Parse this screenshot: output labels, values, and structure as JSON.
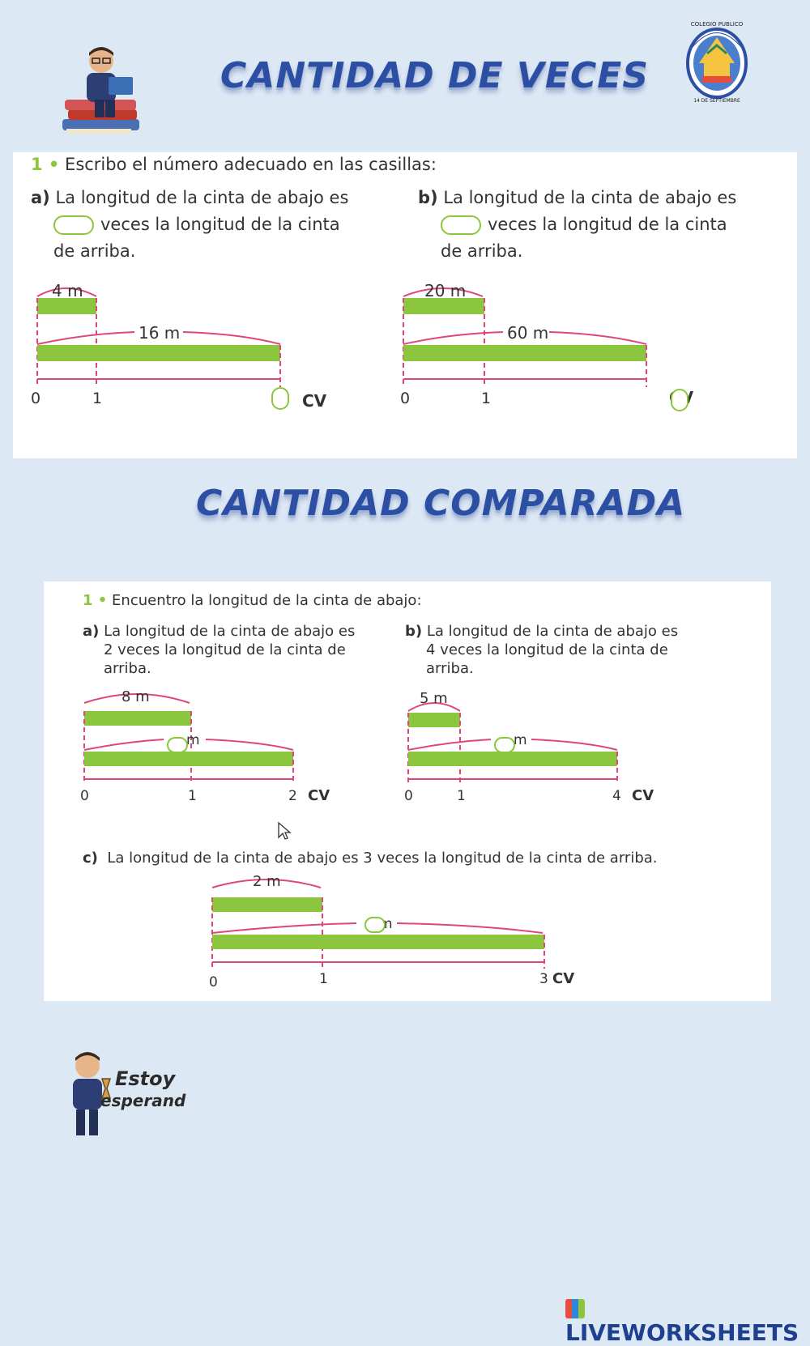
{
  "header": {
    "title1": "CANTIDAD DE VECES",
    "title2": "CANTIDAD COMPARADA",
    "school_top": "COLEGIO PUBLICO",
    "school_bottom": "14 DE SEPTIEMBRE"
  },
  "section1": {
    "instruction_num": "1",
    "instruction": "Escribo el número adecuado en las casillas:",
    "a": {
      "letter": "a)",
      "line1": "La longitud de la cinta de abajo es",
      "line2": "veces la longitud de la cinta",
      "line3": "de arriba.",
      "top_len": "4 m",
      "bottom_len": "16 m",
      "tick0": "0",
      "tick1": "1",
      "cv": "CV"
    },
    "b": {
      "letter": "b)",
      "line1": "La longitud de la cinta de abajo es",
      "line2": "veces la longitud de la cinta",
      "line3": "de arriba.",
      "top_len": "20 m",
      "bottom_len": "60 m",
      "tick0": "0",
      "tick1": "1",
      "cv": "CV"
    }
  },
  "section2": {
    "instruction_num": "1",
    "instruction": "Encuentro la longitud de la cinta de abajo:",
    "a": {
      "letter": "a)",
      "line1": "La longitud de la cinta de abajo es",
      "line2": "2 veces la longitud de la cinta de",
      "line3": "arriba.",
      "top_len": "8 m",
      "unit": "m",
      "tick0": "0",
      "tick1": "1",
      "tick2": "2",
      "cv": "CV"
    },
    "b": {
      "letter": "b)",
      "line1": "La longitud de la cinta de abajo es",
      "line2": "4 veces la longitud de la cinta de",
      "line3": "arriba.",
      "top_len": "5 m",
      "unit": "m",
      "tick0": "0",
      "tick1": "1",
      "tick4": "4",
      "cv": "CV"
    },
    "c": {
      "letter": "c)",
      "text": "La longitud de la cinta de abajo es 3 veces la longitud de la cinta de arriba.",
      "top_len": "2 m",
      "unit": "m",
      "tick0": "0",
      "tick1": "1",
      "tick3": "3",
      "cv": "CV"
    }
  },
  "footer": {
    "waiting_1": "Estoy",
    "waiting_2": "esperando",
    "brand": "LIVEWORKSHEETS"
  },
  "colors": {
    "tape_green": "#8cc63f",
    "axis_magenta": "#e0457b",
    "title_blue": "#2c4fa3"
  }
}
